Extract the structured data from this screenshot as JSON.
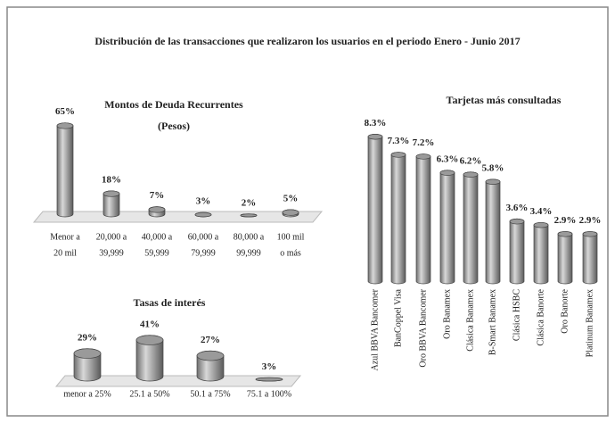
{
  "title": "Distribución de las transacciones que realizaron los usuarios en el periodo Enero - Junio 2017",
  "chart_data": [
    {
      "type": "bar",
      "title": "Montos de Deuda Recurrentes",
      "subtitle": "(Pesos)",
      "categories": [
        [
          "Menor a",
          "20 mil"
        ],
        [
          "20,000 a",
          "39,999"
        ],
        [
          "40,000 a",
          "59,999"
        ],
        [
          "60,000 a",
          "79,999"
        ],
        [
          "80,000 a",
          "99,999"
        ],
        [
          "100 mil",
          "o más"
        ]
      ],
      "values": [
        65,
        18,
        7,
        3,
        2,
        5
      ],
      "value_labels": [
        "65%",
        "18%",
        "7%",
        "3%",
        "2%",
        "5%"
      ],
      "color": "#9a9a9a"
    },
    {
      "type": "bar",
      "title": "Tasas de interés",
      "categories": [
        "menor a 25%",
        "25.1 a 50%",
        "50.1 a 75%",
        "75.1 a 100%"
      ],
      "values": [
        29,
        41,
        27,
        3
      ],
      "value_labels": [
        "29%",
        "41%",
        "27%",
        "3%"
      ],
      "color": "#9a9a9a"
    },
    {
      "type": "bar",
      "title": "Tarjetas más consultadas",
      "categories": [
        "Azul BBVA Bancomer",
        "BanCoppel Visa",
        "Oro BBVA Bancomer",
        "Oro Banamex",
        "Clásica Banamex",
        "B-Smart Banamex",
        "Clásica HSBC",
        "Clásica Banorte",
        "Oro Banorte",
        "Platinum Banamex"
      ],
      "values": [
        8.3,
        7.3,
        7.2,
        6.3,
        6.2,
        5.8,
        3.6,
        3.4,
        2.9,
        2.9
      ],
      "value_labels": [
        "8.3%",
        "7.3%",
        "7.2%",
        "6.3%",
        "6.2%",
        "5.8%",
        "3.6%",
        "3.4%",
        "2.9%",
        "2.9%"
      ],
      "color": "#9a9a9a"
    }
  ]
}
